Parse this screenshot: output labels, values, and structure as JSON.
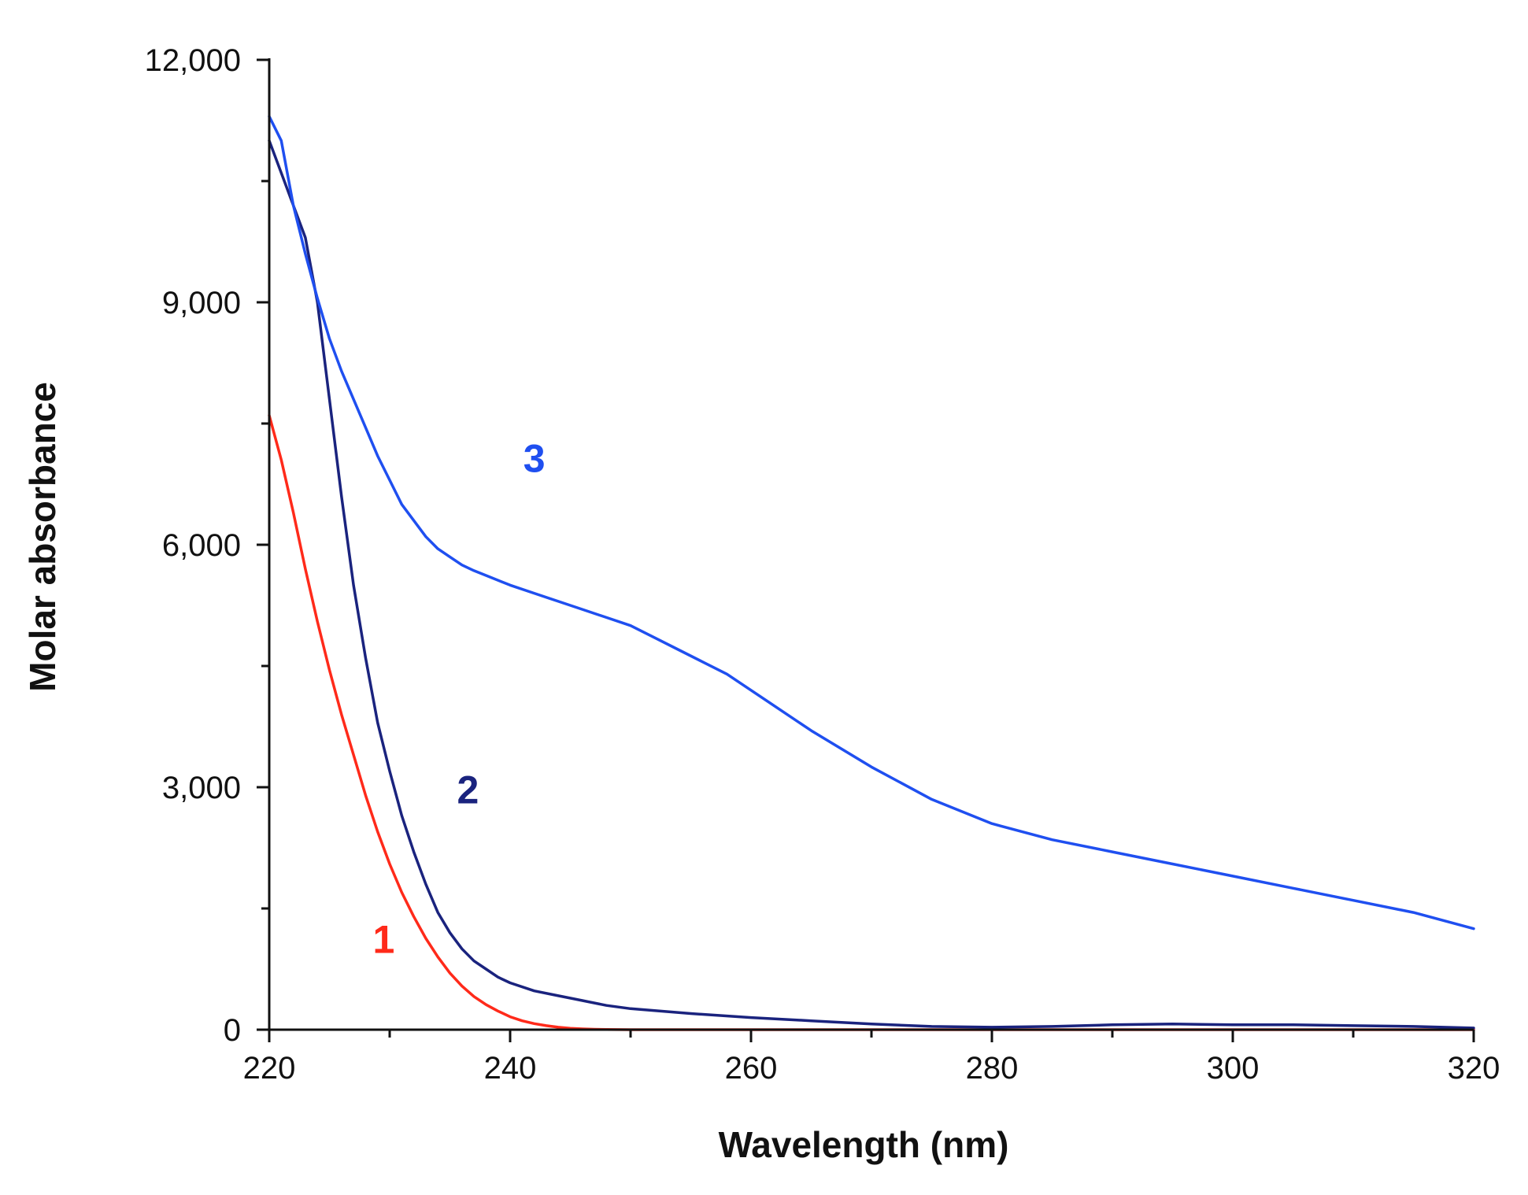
{
  "chart_data": {
    "type": "line",
    "title": "",
    "xlabel": "Wavelength (nm)",
    "ylabel": "Molar absorbance",
    "xlim": [
      220,
      320
    ],
    "ylim": [
      0,
      12000
    ],
    "x_ticks": [
      220,
      240,
      260,
      280,
      300,
      320
    ],
    "x_tick_labels": [
      "220",
      "240",
      "260",
      "280",
      "300",
      "320"
    ],
    "x_minor_ticks": [
      230,
      250,
      270,
      290,
      310
    ],
    "y_ticks": [
      0,
      3000,
      6000,
      9000,
      12000
    ],
    "y_tick_labels": [
      "0",
      "3,000",
      "6,000",
      "9,000",
      "12,000"
    ],
    "y_minor_ticks": [
      1500,
      4500,
      7500,
      10500
    ],
    "grid": false,
    "legend": "none",
    "series": [
      {
        "name": "1",
        "color": "#ff2a1a",
        "label_pos": [
          229.5,
          950
        ],
        "x": [
          220,
          221,
          222,
          223,
          224,
          225,
          226,
          227,
          228,
          229,
          230,
          231,
          232,
          233,
          234,
          235,
          236,
          237,
          238,
          239,
          240,
          241,
          242,
          243,
          244,
          245,
          246,
          247,
          248,
          250,
          255,
          260,
          270,
          280,
          290,
          300,
          310,
          320
        ],
        "values": [
          7600,
          7050,
          6400,
          5700,
          5050,
          4450,
          3900,
          3400,
          2900,
          2450,
          2050,
          1700,
          1400,
          1130,
          900,
          700,
          540,
          410,
          310,
          230,
          160,
          110,
          75,
          50,
          30,
          18,
          10,
          5,
          2,
          0,
          0,
          0,
          0,
          0,
          0,
          0,
          0,
          0
        ]
      },
      {
        "name": "2",
        "color": "#1a237e",
        "label_pos": [
          236.5,
          2800
        ],
        "x": [
          220,
          221,
          222,
          223,
          224,
          225,
          226,
          227,
          228,
          229,
          230,
          231,
          232,
          233,
          234,
          235,
          236,
          237,
          238,
          239,
          240,
          242,
          244,
          246,
          248,
          250,
          255,
          260,
          265,
          270,
          275,
          280,
          285,
          290,
          295,
          300,
          305,
          310,
          315,
          320
        ],
        "values": [
          11000,
          10600,
          10200,
          9800,
          9000,
          7800,
          6600,
          5500,
          4600,
          3800,
          3200,
          2650,
          2200,
          1800,
          1450,
          1200,
          1000,
          850,
          750,
          650,
          580,
          480,
          420,
          360,
          300,
          260,
          200,
          150,
          110,
          70,
          40,
          30,
          40,
          60,
          70,
          60,
          60,
          50,
          40,
          20
        ]
      },
      {
        "name": "3",
        "color": "#1f4ff0",
        "label_pos": [
          242,
          6900
        ],
        "x": [
          220,
          221,
          222,
          223,
          224,
          225,
          226,
          227,
          228,
          229,
          230,
          231,
          232,
          233,
          234,
          235,
          236,
          237,
          238,
          240,
          242,
          244,
          246,
          248,
          250,
          252,
          254,
          256,
          258,
          260,
          265,
          270,
          275,
          280,
          285,
          290,
          295,
          300,
          305,
          310,
          315,
          320
        ],
        "values": [
          11300,
          11000,
          10200,
          9600,
          9050,
          8550,
          8150,
          7800,
          7450,
          7100,
          6800,
          6500,
          6300,
          6100,
          5950,
          5850,
          5750,
          5680,
          5620,
          5500,
          5400,
          5300,
          5200,
          5100,
          5000,
          4850,
          4700,
          4550,
          4400,
          4200,
          3700,
          3250,
          2850,
          2550,
          2350,
          2200,
          2050,
          1900,
          1750,
          1600,
          1450,
          1250
        ]
      }
    ]
  }
}
